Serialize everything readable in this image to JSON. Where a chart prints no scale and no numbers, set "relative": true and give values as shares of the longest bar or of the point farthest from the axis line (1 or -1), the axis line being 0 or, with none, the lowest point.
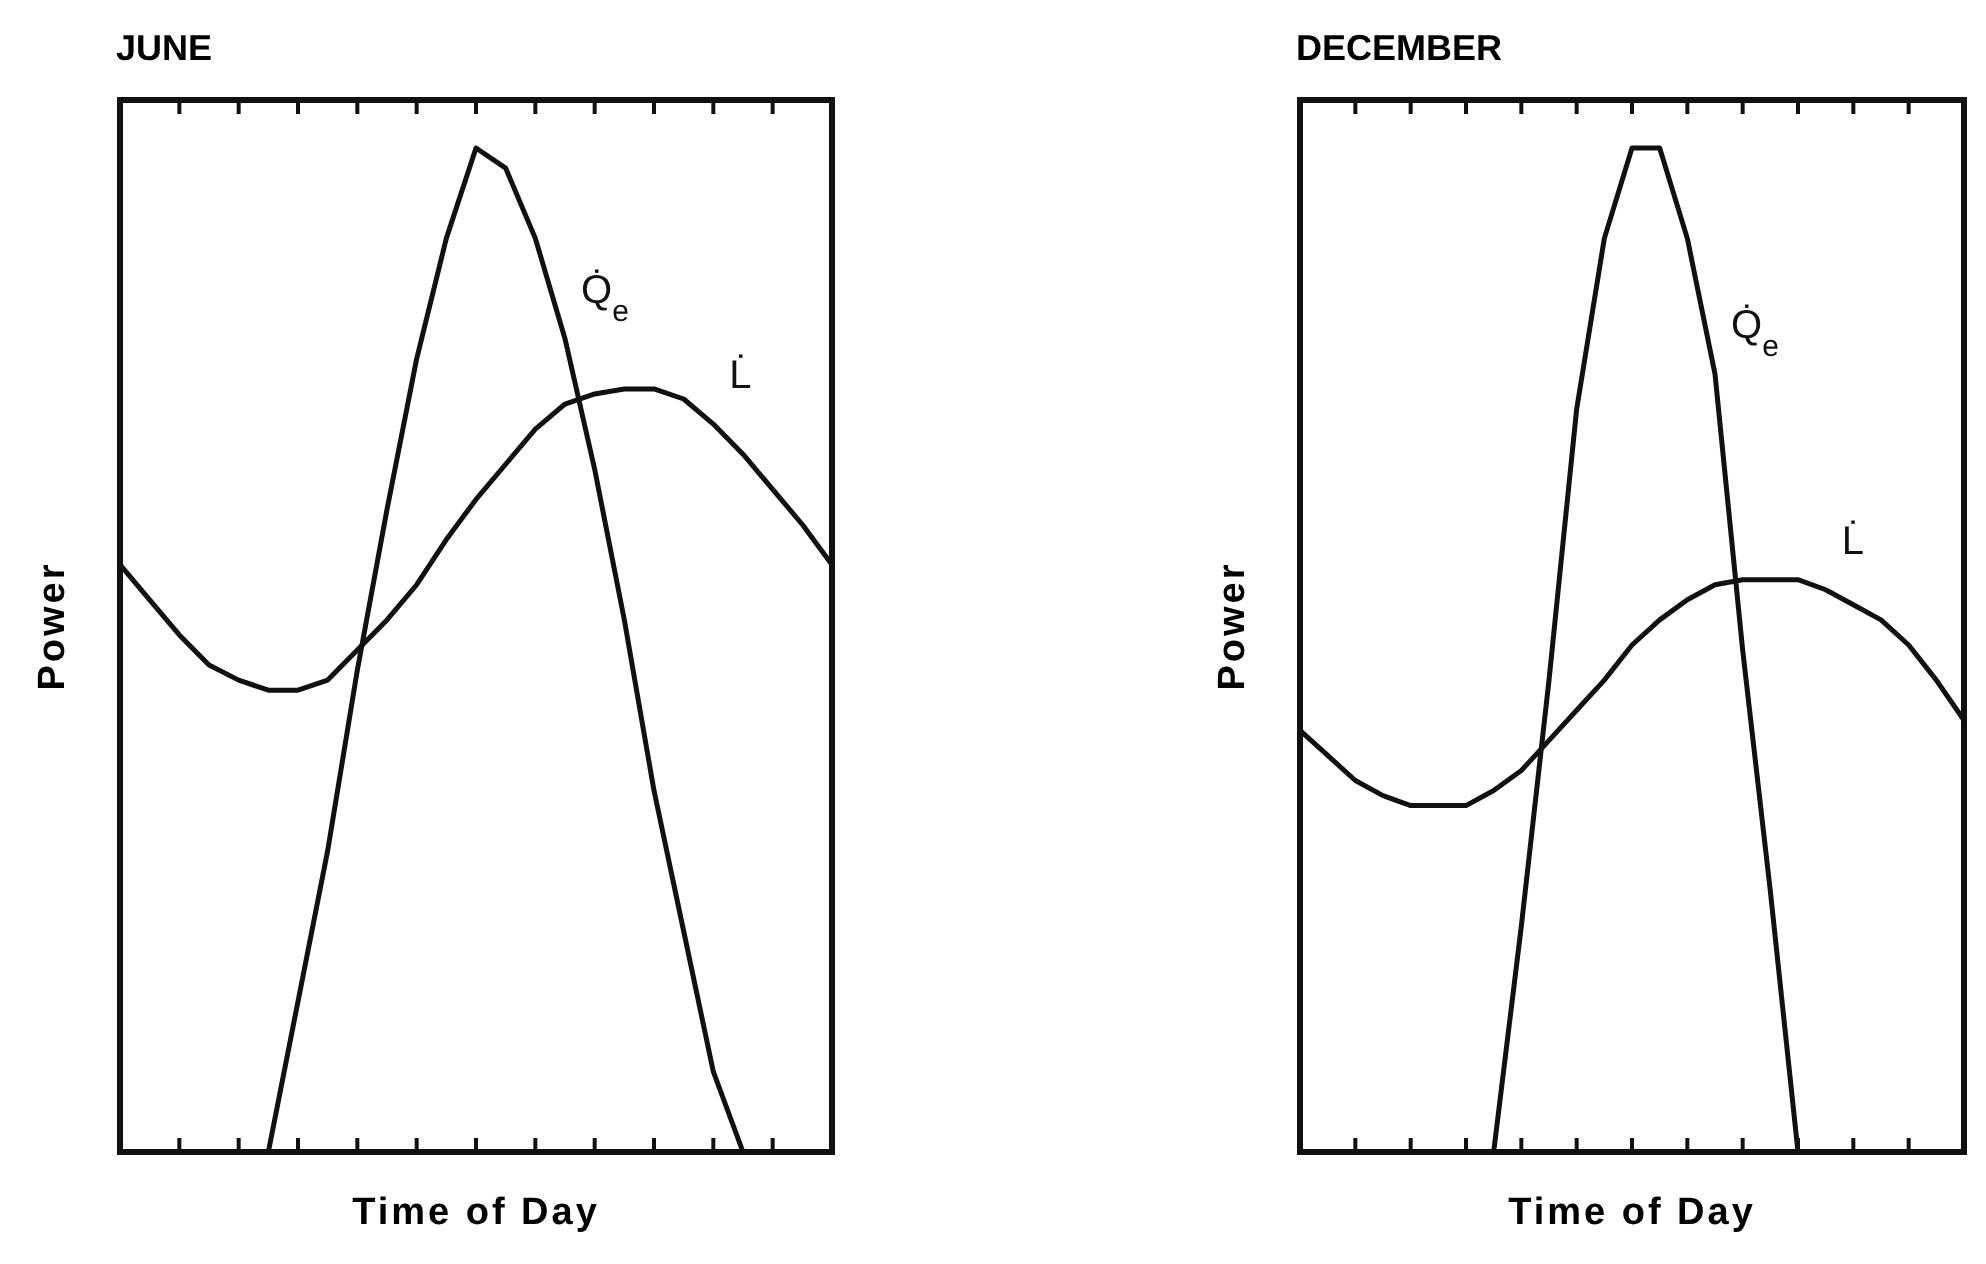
{
  "chart_data": [
    {
      "type": "line",
      "title": "JUNE",
      "xlabel": "Time of Day",
      "ylabel": "Power",
      "relative": true,
      "categories": [
        null,
        null,
        null,
        null,
        null,
        null,
        null,
        null,
        null,
        null,
        null,
        null,
        null,
        null,
        null,
        null,
        null,
        null,
        null,
        null,
        null,
        null,
        null,
        null,
        null
      ],
      "series": [
        {
          "name": "Q̇$_{e}$",
          "color": "#111111",
          "values": [
            0,
            0,
            0,
            0,
            0,
            0,
            0.15,
            0.3,
            0.48,
            0.64,
            0.79,
            0.91,
            1,
            0.98,
            0.91,
            0.81,
            0.68,
            0.53,
            0.36,
            0.22,
            0.08,
            0,
            0,
            0,
            0
          ]
        },
        {
          "name": "L̇",
          "color": "#111111",
          "values": [
            0.585,
            0.55,
            0.515,
            0.485,
            0.47,
            0.46,
            0.46,
            0.47,
            0.5,
            0.53,
            0.565,
            0.61,
            0.65,
            0.685,
            0.72,
            0.745,
            0.755,
            0.76,
            0.76,
            0.75,
            0.725,
            0.695,
            0.66,
            0.625,
            0.585
          ]
        }
      ]
    },
    {
      "type": "line",
      "title": "DECEMBER",
      "xlabel": "Time of Day",
      "ylabel": "Power",
      "relative": true,
      "categories": [
        null,
        null,
        null,
        null,
        null,
        null,
        null,
        null,
        null,
        null,
        null,
        null,
        null,
        null,
        null,
        null,
        null,
        null,
        null,
        null,
        null,
        null,
        null,
        null,
        null
      ],
      "series": [
        {
          "name": "Q̇$_{e}$",
          "color": "#111111",
          "values": [
            0,
            0,
            0,
            0,
            0,
            0,
            0,
            0,
            0.225,
            0.47,
            0.74,
            0.91,
            1,
            1,
            0.91,
            0.775,
            0.5,
            0.26,
            0,
            0,
            0,
            0,
            0,
            0,
            0
          ]
        },
        {
          "name": "L̇",
          "color": "#111111",
          "values": [
            0.42,
            0.395,
            0.37,
            0.355,
            0.345,
            0.345,
            0.345,
            0.36,
            0.38,
            0.41,
            0.44,
            0.47,
            0.505,
            0.53,
            0.55,
            0.565,
            0.57,
            0.57,
            0.57,
            0.56,
            0.545,
            0.53,
            0.505,
            0.47,
            0.43
          ]
        }
      ]
    }
  ]
}
